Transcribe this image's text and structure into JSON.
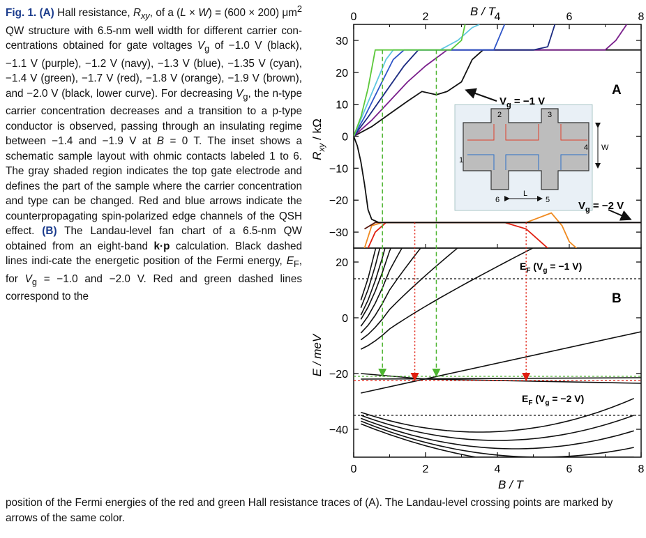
{
  "caption": {
    "label": "Fig. 1.",
    "part_a_marker": "(A)",
    "part_a_text_1": " Hall resistance, ",
    "R_sym": "R",
    "R_sub": "xy",
    "part_a_text_2": ", of a (",
    "L_sym": "L",
    "times_1": " × ",
    "W_sym": "W",
    "part_a_text_3": ") = (600 × 200) μm",
    "sq": "2",
    "part_a_text_4": " QW structure with 6.5-nm well width for different carrier con-centrations obtained for gate voltages ",
    "V_sym": "V",
    "V_sub": "g",
    "part_a_text_5": " of −1.0 V (black), −1.1 V (purple), −1.2 V (navy), −1.3 V (blue), −1.35 V (cyan), −1.4 V (green), −1.7 V (red), −1.8 V (orange), −1.9 V (brown), and −2.0 V (black, lower curve). For decreasing ",
    "V2_sym": "V",
    "V2_sub": "g",
    "part_a_text_6": ", the n-type carrier concentration decreases and a transition to a p-type conductor is observed, passing through an insulating regime between −1.4 and −1.9 V at ",
    "B_sym": "B",
    "part_a_text_7": " = 0 T. The inset shows a schematic sample layout with ohmic contacts labeled 1 to 6. The gray shaded region indicates the top gate electrode and defines the part of the sample where the carrier concentration and type can be changed. Red and blue arrows indicate the counterpropagating spin-polarized edge channels of the QSH effect. ",
    "part_b_marker": "(B)",
    "part_b_text_1": " The Landau-level fan chart of a 6.5-nm QW obtained from an eight-band ",
    "kp": "k·p",
    "part_b_text_2": " calculation. Black dashed lines indi-cate the energetic position of the Fermi energy, ",
    "EF_sym": "E",
    "EF_sub": "F",
    "part_b_text_3": ", for ",
    "V3_sym": "V",
    "V3_sub": "g",
    "part_b_text_4": " = −1.0 and −2.0 V. Red and green dashed lines correspond to the",
    "bottom_line": "position of the Fermi energies of the red and green Hall resistance traces of (A). The Landau-level crossing points are marked by arrows of the same color."
  },
  "figure": {
    "top_axis_label": "B / T",
    "bottom_axis_label": "B / T",
    "panel_a_ylabel": "R",
    "panel_a_ylabel_sub": "xy",
    "panel_a_ylabel_unit": " / kΩ",
    "panel_b_ylabel": "E / meV",
    "panel_a_letter": "A",
    "panel_b_letter": "B",
    "annot_vg_neg1": "V",
    "annot_vg_neg1_sub": "g",
    "annot_vg_neg1_val": " = −1 V",
    "annot_vg_neg2": "V",
    "annot_vg_neg2_sub": "g",
    "annot_vg_neg2_val": " = −2 V",
    "ef1_text": "E",
    "ef1_sub": "F",
    "ef1_paren": " (V",
    "ef1_psub": "g",
    "ef1_val": " = −1 V)",
    "ef2_text": "E",
    "ef2_sub": "F",
    "ef2_paren": " (V",
    "ef2_psub": "g",
    "ef2_val": " = −2 V)",
    "inset_labels": [
      "1",
      "2",
      "3",
      "4",
      "5",
      "6"
    ],
    "inset_L": "L",
    "inset_W": "W"
  },
  "chart_data": [
    {
      "type": "line",
      "panel": "A",
      "xlabel": "B / T",
      "ylabel": "R_xy / kΩ",
      "xlim": [
        0,
        8
      ],
      "ylim": [
        -35,
        35
      ],
      "xticks": [
        "0",
        "2",
        "4",
        "6",
        "8"
      ],
      "yticks": [
        "−30",
        "−20",
        "−10",
        "0",
        "10",
        "20",
        "30"
      ],
      "colors": {
        "black": "#111111",
        "purple": "#7a1f8c",
        "navy": "#1a2a80",
        "blue": "#2f55c8",
        "cyan": "#5fc6e0",
        "green": "#5cc83a",
        "red": "#e01f10",
        "orange": "#f08a20",
        "brown": "#5a1a10"
      },
      "series": [
        {
          "name": "−1.0 V (black)",
          "color": "#111111",
          "points": [
            [
              0,
              0
            ],
            [
              0.5,
              3
            ],
            [
              1.0,
              7
            ],
            [
              1.5,
              11
            ],
            [
              1.9,
              14
            ],
            [
              2.3,
              13
            ],
            [
              2.6,
              14
            ],
            [
              3.0,
              17
            ],
            [
              3.3,
              24
            ],
            [
              3.6,
              27
            ],
            [
              4,
              27
            ],
            [
              8,
              27
            ]
          ]
        },
        {
          "name": "−1.1 V (purple)",
          "color": "#7a1f8c",
          "points": [
            [
              0,
              0
            ],
            [
              0.5,
              5
            ],
            [
              1.0,
              11
            ],
            [
              1.5,
              17
            ],
            [
              2.0,
              22
            ],
            [
              2.6,
              27
            ],
            [
              4,
              27
            ],
            [
              6.5,
              27
            ],
            [
              7.0,
              27
            ],
            [
              7.3,
              30
            ],
            [
              7.6,
              35
            ]
          ]
        },
        {
          "name": "−1.2 V (navy)",
          "color": "#1a2a80",
          "points": [
            [
              0,
              0
            ],
            [
              0.4,
              6
            ],
            [
              0.9,
              14
            ],
            [
              1.4,
              22
            ],
            [
              1.8,
              27
            ],
            [
              4,
              27
            ],
            [
              5,
              27
            ],
            [
              5.4,
              28
            ],
            [
              5.6,
              35
            ]
          ]
        },
        {
          "name": "−1.3 V (blue)",
          "color": "#2f55c8",
          "points": [
            [
              0,
              0
            ],
            [
              0.3,
              6
            ],
            [
              0.7,
              15
            ],
            [
              1.1,
              24
            ],
            [
              1.4,
              27
            ],
            [
              3.5,
              27
            ],
            [
              3.9,
              27
            ],
            [
              4.2,
              35
            ]
          ]
        },
        {
          "name": "−1.35 V (cyan)",
          "color": "#5fc6e0",
          "points": [
            [
              0,
              0
            ],
            [
              0.3,
              8
            ],
            [
              0.6,
              16
            ],
            [
              0.9,
              24
            ],
            [
              1.1,
              27
            ],
            [
              2.4,
              27
            ],
            [
              2.9,
              30
            ],
            [
              3.3,
              34
            ],
            [
              3.5,
              35
            ]
          ]
        },
        {
          "name": "−1.4 V (green)",
          "color": "#5cc83a",
          "points": [
            [
              0,
              0
            ],
            [
              0.2,
              6
            ],
            [
              0.4,
              15
            ],
            [
              0.6,
              27
            ],
            [
              0.8,
              27
            ],
            [
              2.2,
              27
            ],
            [
              2.7,
              27
            ],
            [
              3.0,
              30
            ],
            [
              3.1,
              35
            ]
          ]
        },
        {
          "name": "−1.7 V (red)",
          "color": "#e01f10",
          "points": [
            [
              0.4,
              -35
            ],
            [
              0.6,
              -30
            ],
            [
              0.9,
              -27
            ],
            [
              3.0,
              -27
            ],
            [
              4.2,
              -27
            ],
            [
              4.8,
              -29
            ],
            [
              5.2,
              -33
            ],
            [
              5.4,
              -35
            ]
          ]
        },
        {
          "name": "−1.8 V (orange)",
          "color": "#f08a20",
          "points": [
            [
              0.3,
              -35
            ],
            [
              0.5,
              -28
            ],
            [
              0.8,
              -27
            ],
            [
              4.8,
              -27
            ],
            [
              5.5,
              -24
            ],
            [
              5.8,
              -28
            ],
            [
              6.0,
              -33
            ],
            [
              6.2,
              -35
            ]
          ]
        },
        {
          "name": "−1.9 V (brown)",
          "color": "#5a1a10",
          "points": [
            [
              0.3,
              -29
            ],
            [
              0.6,
              -27
            ],
            [
              8,
              -27
            ]
          ]
        },
        {
          "name": "−2.0 V (black, lower curve)",
          "color": "#111111",
          "points": [
            [
              0,
              0
            ],
            [
              0.1,
              -3
            ],
            [
              0.2,
              -8
            ],
            [
              0.3,
              -15
            ],
            [
              0.4,
              -23
            ],
            [
              0.5,
              -26
            ],
            [
              0.7,
              -27
            ],
            [
              8,
              -27
            ]
          ]
        }
      ],
      "annotations": [
        "V_g = −1 V",
        "V_g = −2 V",
        "A"
      ]
    },
    {
      "type": "line",
      "panel": "B",
      "xlabel": "B / T",
      "ylabel": "E / meV",
      "xlim": [
        0,
        8
      ],
      "ylim": [
        -50,
        25
      ],
      "xticks": [
        "0",
        "2",
        "4",
        "6",
        "8"
      ],
      "yticks": [
        "−40",
        "−20",
        "0",
        "20"
      ],
      "fermi_levels": {
        "Vg_minus_1": 14,
        "Vg_minus_2": -35,
        "red": -22.5,
        "green": -21
      },
      "crossing_arrows": {
        "green_B": [
          0.8,
          2.3
        ],
        "red_B": [
          1.7,
          4.8
        ]
      },
      "annotations": [
        "E_F (V_g = −1 V)",
        "E_F (V_g = −2 V)",
        "B"
      ]
    }
  ]
}
